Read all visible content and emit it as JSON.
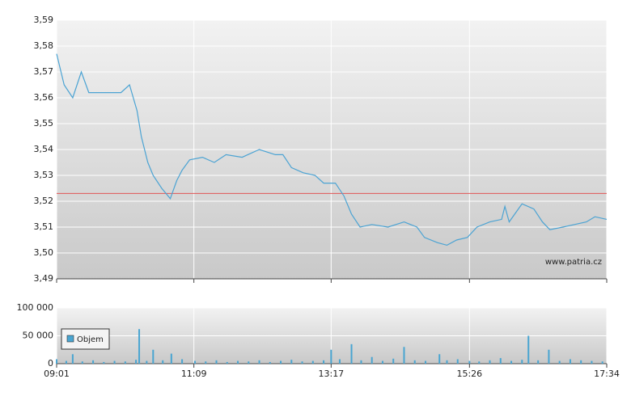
{
  "chart_data": [
    {
      "type": "line",
      "color": "#4ba3d3",
      "annotation": "www.patria.cz",
      "reference_line": {
        "value": 3.523,
        "color": "#e05555"
      },
      "x": [
        "09:01",
        "09:08",
        "09:16",
        "09:24",
        "09:31",
        "09:46",
        "10:01",
        "10:09",
        "10:16",
        "10:20",
        "10:26",
        "10:31",
        "10:39",
        "10:47",
        "10:53",
        "10:58",
        "11:05",
        "11:17",
        "11:28",
        "11:39",
        "11:54",
        "12:10",
        "12:25",
        "12:32",
        "12:40",
        "12:51",
        "13:02",
        "13:10",
        "13:21",
        "13:29",
        "13:36",
        "13:44",
        "13:55",
        "14:10",
        "14:25",
        "14:37",
        "14:44",
        "14:56",
        "15:05",
        "15:14",
        "15:24",
        "15:33",
        "15:45",
        "15:56",
        "15:59",
        "16:03",
        "16:15",
        "16:26",
        "16:34",
        "16:41",
        "16:53",
        "17:04",
        "17:15",
        "17:23",
        "17:34"
      ],
      "values": [
        3.577,
        3.565,
        3.56,
        3.57,
        3.562,
        3.562,
        3.562,
        3.565,
        3.555,
        3.545,
        3.535,
        3.53,
        3.525,
        3.521,
        3.528,
        3.532,
        3.536,
        3.537,
        3.535,
        3.538,
        3.537,
        3.54,
        3.538,
        3.538,
        3.533,
        3.531,
        3.53,
        3.527,
        3.527,
        3.522,
        3.515,
        3.51,
        3.511,
        3.51,
        3.512,
        3.51,
        3.506,
        3.504,
        3.503,
        3.505,
        3.506,
        3.51,
        3.512,
        3.513,
        3.518,
        3.512,
        3.519,
        3.517,
        3.512,
        3.509,
        3.51,
        3.511,
        3.512,
        3.514,
        3.513
      ],
      "xlim": [
        "09:01",
        "17:34"
      ],
      "xticks": [
        "09:01",
        "11:09",
        "13:17",
        "15:26",
        "17:34"
      ],
      "ylim": [
        3.49,
        3.59
      ],
      "yticks": [
        {
          "value": 3.49,
          "label": "3,49"
        },
        {
          "value": 3.5,
          "label": "3,50"
        },
        {
          "value": 3.51,
          "label": "3,51"
        },
        {
          "value": 3.52,
          "label": "3,52"
        },
        {
          "value": 3.53,
          "label": "3,53"
        },
        {
          "value": 3.54,
          "label": "3,54"
        },
        {
          "value": 3.55,
          "label": "3,55"
        },
        {
          "value": 3.56,
          "label": "3,56"
        },
        {
          "value": 3.57,
          "label": "3,57"
        },
        {
          "value": 3.58,
          "label": "3,58"
        },
        {
          "value": 3.59,
          "label": "3,59"
        }
      ],
      "grid": true
    },
    {
      "type": "bar",
      "legend": "upper left",
      "x": [
        "09:01",
        "09:10",
        "09:16",
        "09:25",
        "09:35",
        "09:45",
        "09:55",
        "10:05",
        "10:15",
        "10:18",
        "10:25",
        "10:31",
        "10:40",
        "10:48",
        "10:58",
        "11:10",
        "11:20",
        "11:30",
        "11:40",
        "11:50",
        "12:00",
        "12:10",
        "12:20",
        "12:30",
        "12:40",
        "12:50",
        "13:00",
        "13:10",
        "13:17",
        "13:25",
        "13:36",
        "13:45",
        "13:55",
        "14:05",
        "14:15",
        "14:25",
        "14:35",
        "14:45",
        "14:58",
        "15:05",
        "15:15",
        "15:26",
        "15:35",
        "15:45",
        "15:55",
        "16:05",
        "16:15",
        "16:21",
        "16:30",
        "16:40",
        "16:50",
        "17:00",
        "17:10",
        "17:20",
        "17:30"
      ],
      "series": [
        {
          "name": "Objem",
          "color": "#49a5d1",
          "values": [
            8000,
            5000,
            17000,
            4000,
            6000,
            3000,
            5000,
            4000,
            7000,
            62000,
            5000,
            25000,
            6000,
            18000,
            8000,
            5000,
            4000,
            6000,
            3000,
            5000,
            4000,
            6000,
            3000,
            5000,
            7000,
            4000,
            5000,
            6000,
            25000,
            8000,
            35000,
            6000,
            12000,
            5000,
            9000,
            30000,
            6000,
            5000,
            17000,
            6000,
            8000,
            5000,
            4000,
            6000,
            10000,
            5000,
            7000,
            50000,
            6000,
            25000,
            5000,
            8000,
            6000,
            5000,
            4000
          ]
        }
      ],
      "xlim": [
        "09:01",
        "17:34"
      ],
      "xticks": [
        "09:01",
        "11:09",
        "13:17",
        "15:26",
        "17:34"
      ],
      "ylim": [
        0,
        100000
      ],
      "yticks": [
        0,
        {
          "value": 50000,
          "label": "50 000"
        },
        {
          "value": 100000,
          "label": "100 000"
        }
      ],
      "grid": true
    }
  ]
}
